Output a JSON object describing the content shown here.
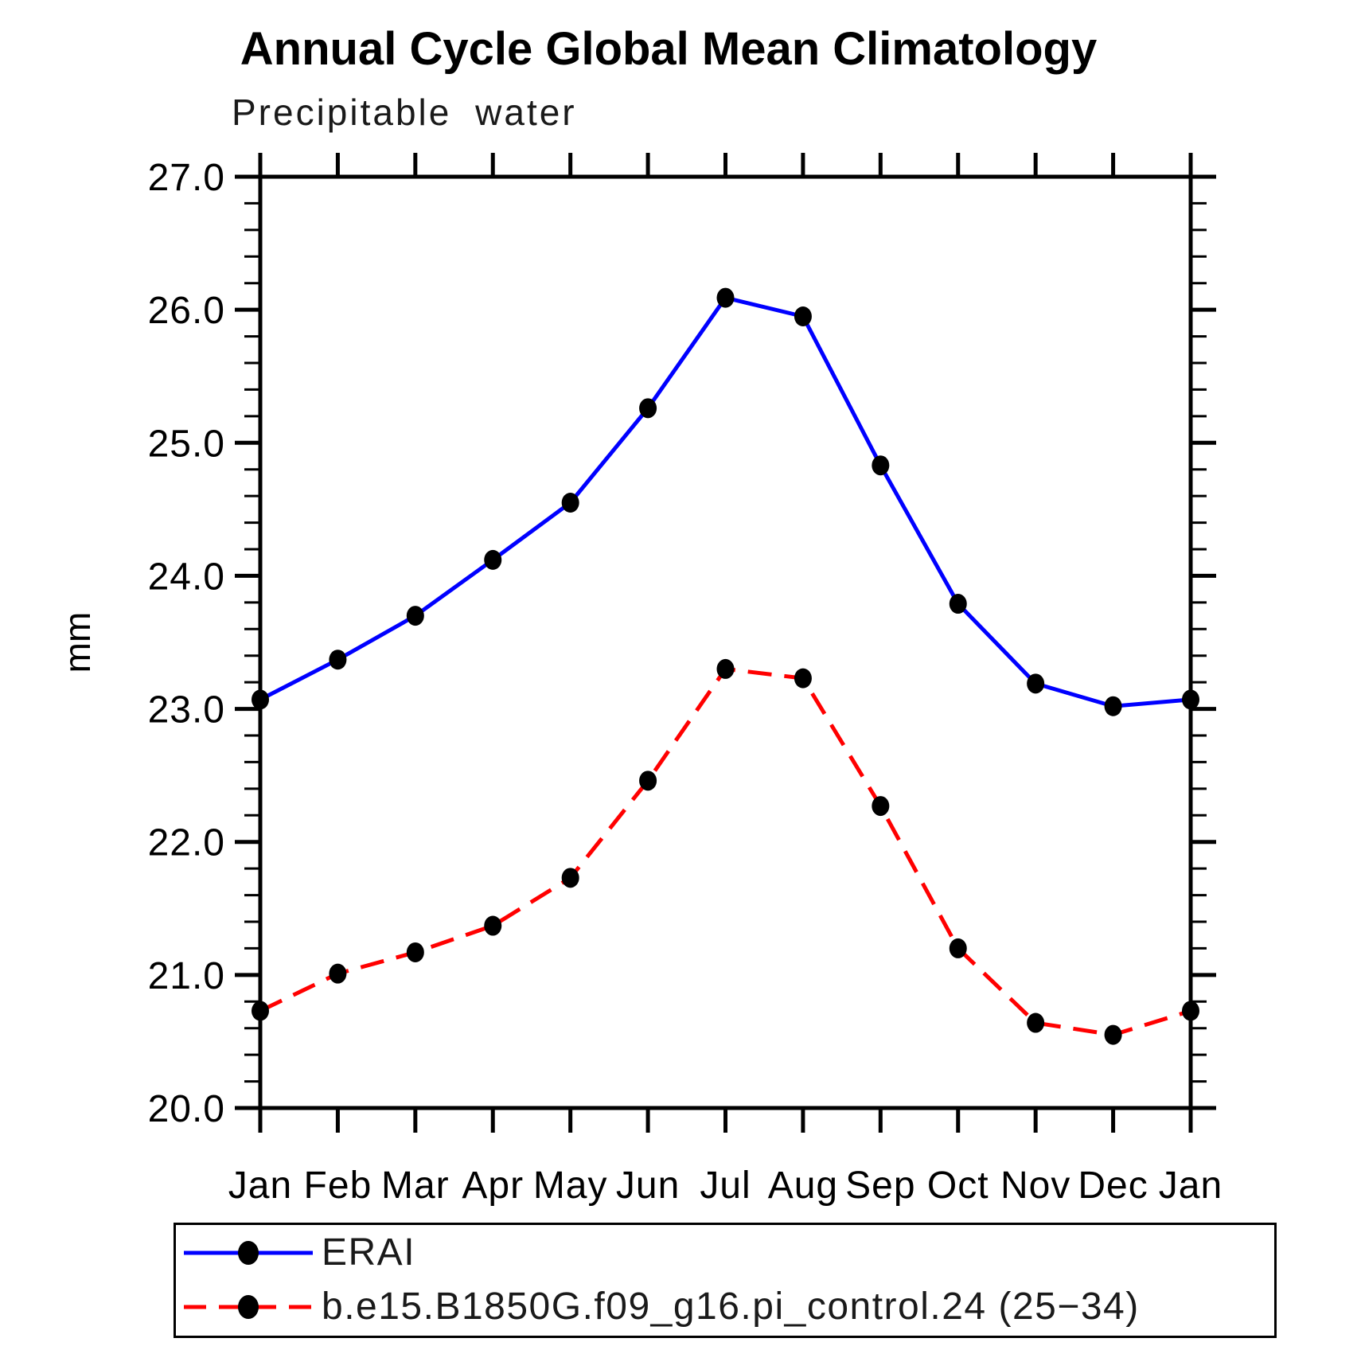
{
  "page": {
    "title": "Annual Cycle Global Mean Climatology",
    "subtitle": "Precipitable water"
  },
  "chart_data": {
    "type": "line",
    "title": "Annual Cycle Global Mean Climatology",
    "subtitle": "Precipitable water",
    "ylabel": "mm",
    "xlabel": "",
    "x_categories": [
      "Jan",
      "Feb",
      "Mar",
      "Apr",
      "May",
      "Jun",
      "Jul",
      "Aug",
      "Sep",
      "Oct",
      "Nov",
      "Dec",
      "Jan"
    ],
    "series": [
      {
        "name": "ERAI",
        "color": "#0000ff",
        "line_style": "solid",
        "marker": "filled-circle",
        "marker_color": "#000000",
        "values": [
          23.07,
          23.37,
          23.7,
          24.12,
          24.55,
          25.26,
          26.09,
          25.95,
          24.83,
          23.79,
          23.19,
          23.02,
          23.07
        ]
      },
      {
        "name": "b.e15.B1850G.f09_g16.pi_control.24 (25−34)",
        "color": "#ff0000",
        "line_style": "dashed",
        "marker": "filled-circle",
        "marker_color": "#000000",
        "values": [
          20.73,
          21.01,
          21.17,
          21.37,
          21.73,
          22.46,
          23.3,
          23.23,
          22.27,
          21.2,
          20.64,
          20.55,
          20.73
        ]
      }
    ],
    "ylim": [
      20.0,
      27.0
    ],
    "ytick_major": {
      "values": [
        20.0,
        21.0,
        22.0,
        23.0,
        24.0,
        25.0,
        26.0,
        27.0
      ],
      "labels": [
        "20.0",
        "21.0",
        "22.0",
        "23.0",
        "24.0",
        "25.0",
        "26.0",
        "27.0"
      ]
    },
    "ytick_minor_step": 0.2,
    "grid": false,
    "axis_color": "#000000",
    "legend_position": "bottom-left-box"
  }
}
